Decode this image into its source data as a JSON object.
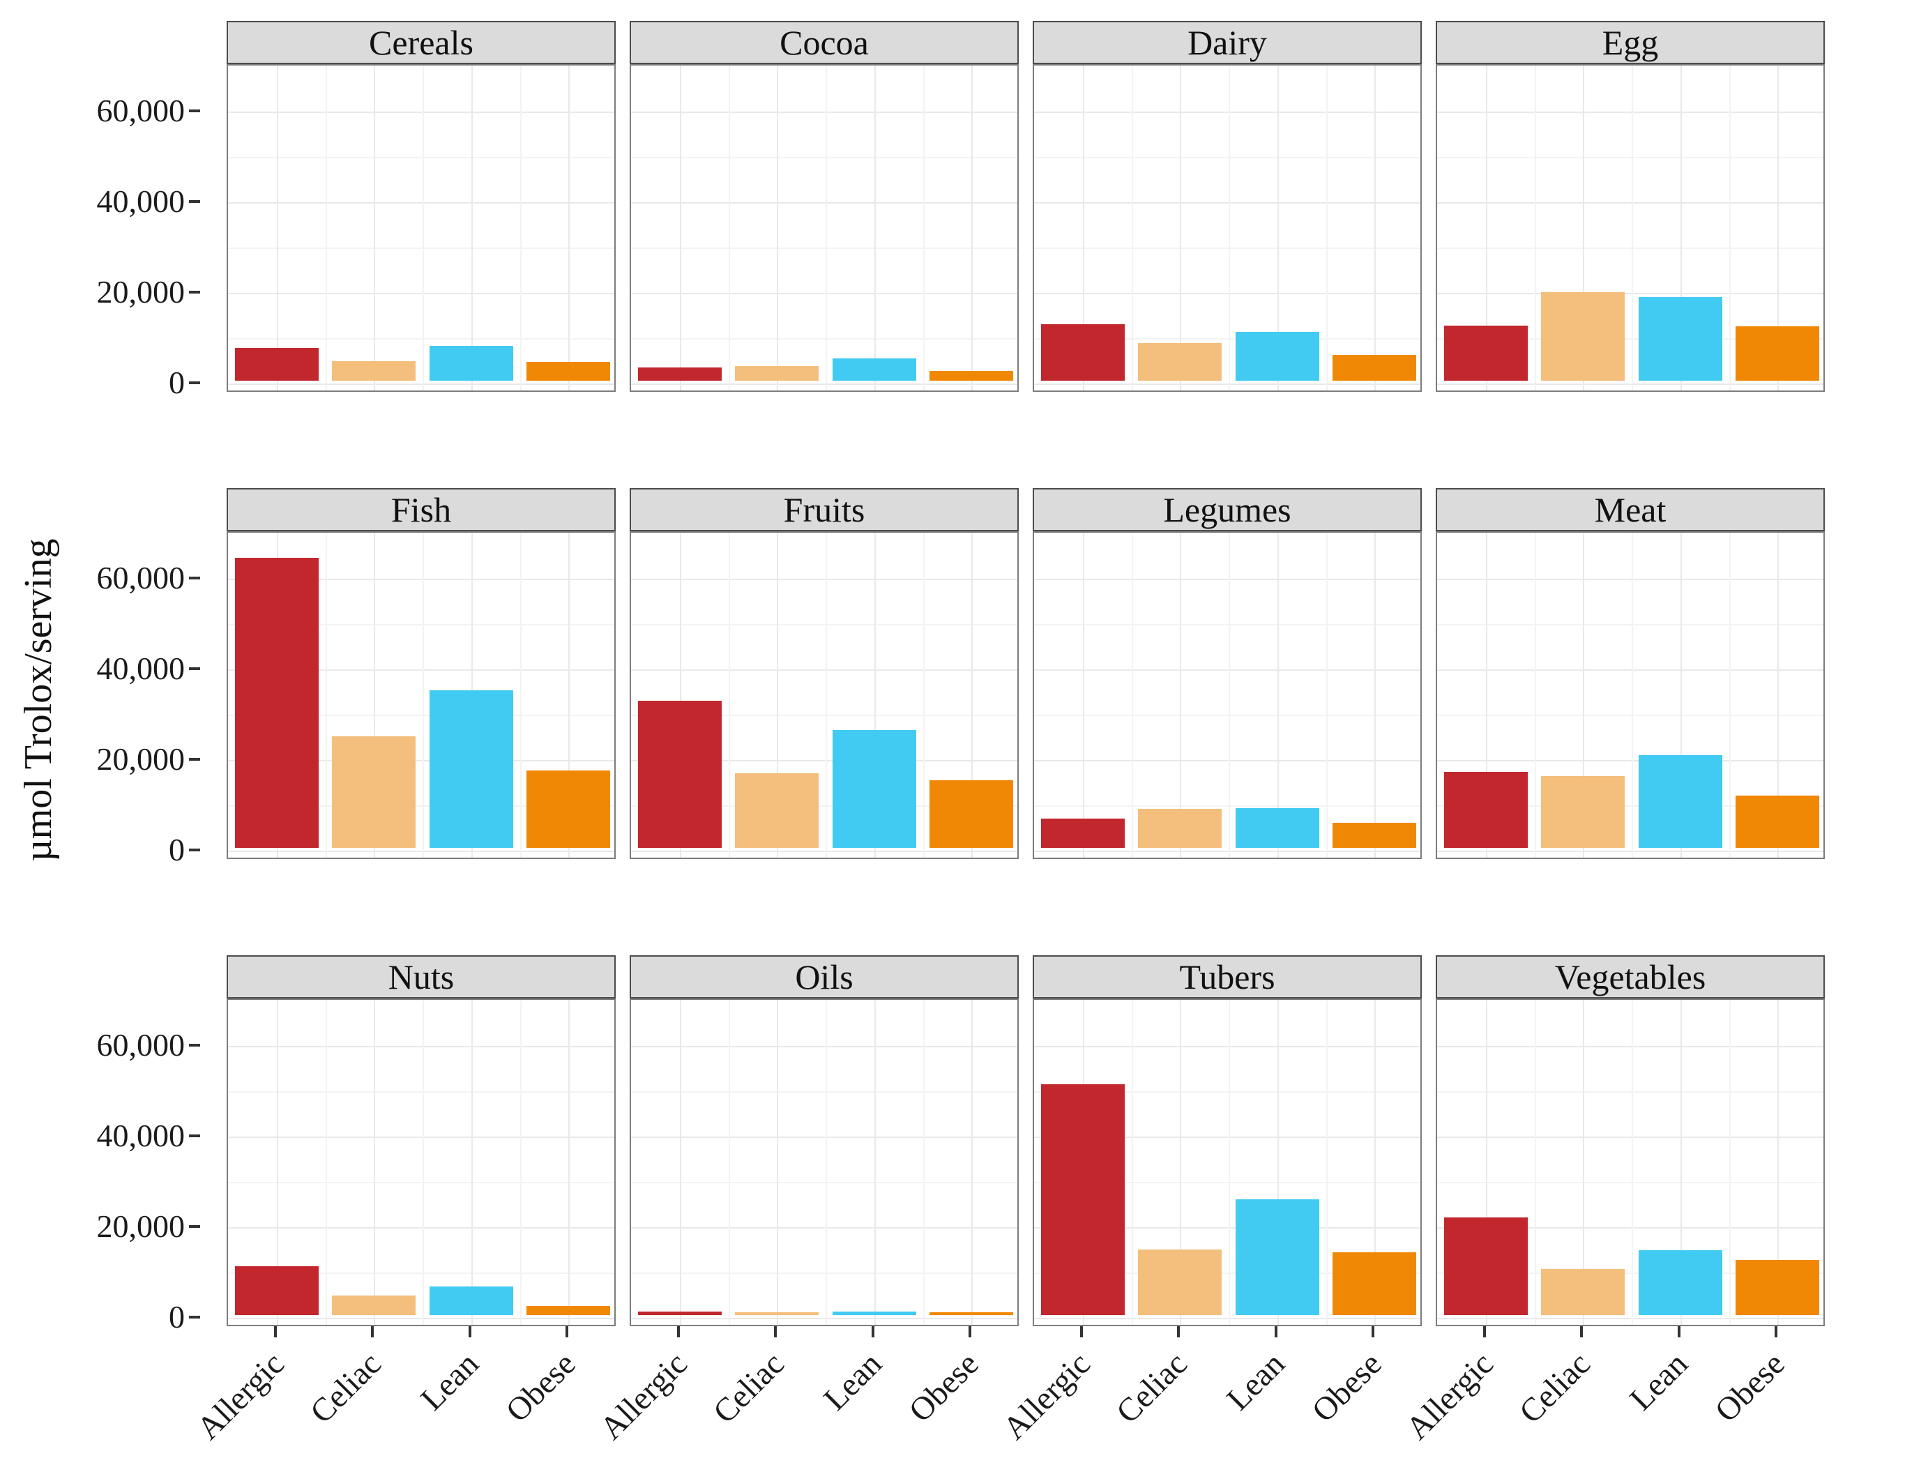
{
  "chart_data": {
    "type": "bar",
    "title": "",
    "ylabel": "µmol Trolox/serving",
    "xlabel": "",
    "legend": "none",
    "grid": "major and minor gridlines",
    "ylim": [
      0,
      70000
    ],
    "yticks": [
      {
        "value": 0,
        "label": "0"
      },
      {
        "value": 20000,
        "label": "20,000"
      },
      {
        "value": 40000,
        "label": "40,000"
      },
      {
        "value": 60000,
        "label": "60,000"
      }
    ],
    "categories": [
      "Allergic",
      "Celiac",
      "Lean",
      "Obese"
    ],
    "series_colors": {
      "Allergic": "#C1272D",
      "Celiac": "#F4BE7C",
      "Lean": "#42CBF2",
      "Obese": "#F18805"
    },
    "facet_layout": {
      "rows": 3,
      "cols": 4
    },
    "facets": [
      {
        "name": "Cereals",
        "values": [
          7200,
          4300,
          7700,
          4100
        ]
      },
      {
        "name": "Cocoa",
        "values": [
          3000,
          3200,
          5000,
          2100
        ]
      },
      {
        "name": "Dairy",
        "values": [
          12500,
          8300,
          10800,
          5700
        ]
      },
      {
        "name": "Egg",
        "values": [
          12200,
          19600,
          18400,
          12000
        ]
      },
      {
        "name": "Fish",
        "values": [
          64000,
          24600,
          34800,
          17100
        ]
      },
      {
        "name": "Fruits",
        "values": [
          32500,
          16400,
          26000,
          15000
        ]
      },
      {
        "name": "Legumes",
        "values": [
          6500,
          8600,
          8800,
          5500
        ]
      },
      {
        "name": "Meat",
        "values": [
          16800,
          15800,
          20500,
          11600
        ]
      },
      {
        "name": "Nuts",
        "values": [
          10800,
          4300,
          6300,
          2000
        ]
      },
      {
        "name": "Oils",
        "values": [
          800,
          500,
          700,
          500
        ]
      },
      {
        "name": "Tubers",
        "values": [
          51000,
          14500,
          25500,
          13800
        ]
      },
      {
        "name": "Vegetables",
        "values": [
          21500,
          10200,
          14300,
          12200
        ]
      }
    ],
    "style": {
      "panel_background": "#ffffff",
      "strip_background": "#dbdbdb",
      "panel_border": "#7d7d7d",
      "major_grid": "#e9e9e9",
      "minor_grid": "#f3f3f3",
      "text_color": "#1a1a1a"
    }
  }
}
